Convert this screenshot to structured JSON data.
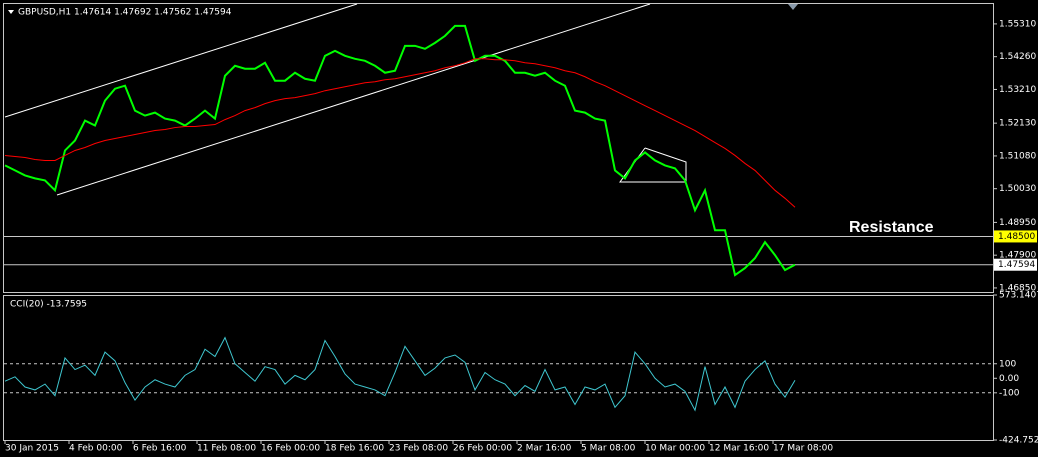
{
  "chart_data": [
    {
      "type": "line",
      "title": "GBPUSD,H1  1.47614 1.47692 1.47562 1.47594",
      "annotation": "Resistance",
      "ylim": [
        1.4672,
        1.5598
      ],
      "yticks": [
        {
          "value": 1.5531,
          "label": "1.55310"
        },
        {
          "value": 1.5426,
          "label": "1.54260"
        },
        {
          "value": 1.5321,
          "label": "1.53210"
        },
        {
          "value": 1.5213,
          "label": "1.52130"
        },
        {
          "value": 1.5108,
          "label": "1.51080"
        },
        {
          "value": 1.5003,
          "label": "1.50030"
        },
        {
          "value": 1.4895,
          "label": "1.48950"
        },
        {
          "value": 1.479,
          "label": "1.47900"
        },
        {
          "value": 1.4685,
          "label": "1.46850"
        }
      ],
      "hlines": [
        {
          "value": 1.485,
          "label": "1.48500",
          "color": "#ffff00"
        },
        {
          "value": 1.47594,
          "label": "1.47594",
          "color": "#ffffff"
        }
      ],
      "series": [
        {
          "color": "#00ff00",
          "values": [
            1.50776,
            1.50616,
            1.50456,
            1.50361,
            1.50297,
            1.49978,
            1.51255,
            1.51574,
            1.52212,
            1.52053,
            1.52851,
            1.53234,
            1.5333,
            1.52532,
            1.52372,
            1.52468,
            1.52276,
            1.52212,
            1.52053,
            1.52276,
            1.52532,
            1.52276,
            1.53649,
            1.53969,
            1.53873,
            1.53873,
            1.54064,
            1.5349,
            1.5349,
            1.53745,
            1.53553,
            1.5349,
            1.54288,
            1.54447,
            1.54288,
            1.54192,
            1.54128,
            1.53969,
            1.53745,
            1.53809,
            1.54607,
            1.54607,
            1.54511,
            1.54703,
            1.54926,
            1.55246,
            1.55246,
            1.54128,
            1.54288,
            1.54288,
            1.54128,
            1.53745,
            1.53745,
            1.53649,
            1.53745,
            1.5349,
            1.5333,
            1.52532,
            1.52468,
            1.52276,
            1.52212,
            1.50616,
            1.50361,
            1.50935,
            1.51191,
            1.50935,
            1.50776,
            1.5068,
            1.50297,
            1.49339,
            1.49978,
            1.487,
            1.487,
            1.47264,
            1.47487,
            1.47806,
            1.48317,
            1.47902,
            1.47423,
            1.47594
          ]
        },
        {
          "color": "#ff0000",
          "values": [
            1.51095,
            1.51063,
            1.51031,
            1.50967,
            1.50935,
            1.50935,
            1.51095,
            1.51255,
            1.5135,
            1.51478,
            1.51574,
            1.51638,
            1.51702,
            1.51766,
            1.51829,
            1.51893,
            1.51925,
            1.51989,
            1.52021,
            1.52021,
            1.52053,
            1.52085,
            1.52244,
            1.52372,
            1.52532,
            1.52628,
            1.52755,
            1.52851,
            1.52915,
            1.52947,
            1.53011,
            1.53075,
            1.5317,
            1.53234,
            1.53298,
            1.53362,
            1.53426,
            1.53458,
            1.53522,
            1.53553,
            1.53617,
            1.53681,
            1.53745,
            1.53809,
            1.53905,
            1.53969,
            1.54064,
            1.54192,
            1.54192,
            1.5416,
            1.5416,
            1.54128,
            1.54064,
            1.54032,
            1.53969,
            1.53905,
            1.53809,
            1.53745,
            1.53617,
            1.53458,
            1.5333,
            1.5317,
            1.53011,
            1.52851,
            1.52691,
            1.52532,
            1.52372,
            1.52212,
            1.52053,
            1.51893,
            1.51702,
            1.5151,
            1.51319,
            1.51095,
            1.5084,
            1.50616,
            1.50297,
            1.49978,
            1.49722,
            1.49435
          ]
        }
      ]
    },
    {
      "type": "line",
      "title": "CCI(20) -13.7595",
      "ylim": [
        -424.7525,
        573.1407
      ],
      "yticks": [
        573.1407,
        100,
        {
          "value": 0,
          "label": "0.00"
        },
        -100,
        -424.7525
      ],
      "levels": [
        100,
        -100
      ],
      "series": [
        {
          "color": "#3fc6cf",
          "values": [
            -20,
            10,
            -60,
            -80,
            -40,
            -120,
            140,
            60,
            90,
            20,
            180,
            120,
            -30,
            -150,
            -60,
            -10,
            -40,
            -60,
            20,
            60,
            200,
            150,
            280,
            100,
            40,
            -20,
            80,
            60,
            -40,
            20,
            -10,
            60,
            260,
            150,
            30,
            -40,
            -60,
            -80,
            -120,
            40,
            220,
            120,
            20,
            70,
            140,
            160,
            110,
            -80,
            40,
            -10,
            -40,
            -120,
            -50,
            -90,
            60,
            -80,
            -60,
            -180,
            -60,
            -80,
            -40,
            -200,
            -120,
            180,
            100,
            0,
            -60,
            -40,
            -90,
            -220,
            80,
            -180,
            -60,
            -200,
            -20,
            60,
            120,
            -40,
            -130,
            -13.7595
          ]
        }
      ],
      "x_labels": [
        "30 Jan 2015",
        "4 Feb 00:00",
        "6 Feb 16:00",
        "11 Feb 08:00",
        "16 Feb 00:00",
        "18 Feb 16:00",
        "23 Feb 08:00",
        "26 Feb 00:00",
        "2 Mar 16:00",
        "5 Mar 08:00",
        "10 Mar 00:00",
        "12 Mar 16:00",
        "17 Mar 08:00"
      ]
    }
  ]
}
